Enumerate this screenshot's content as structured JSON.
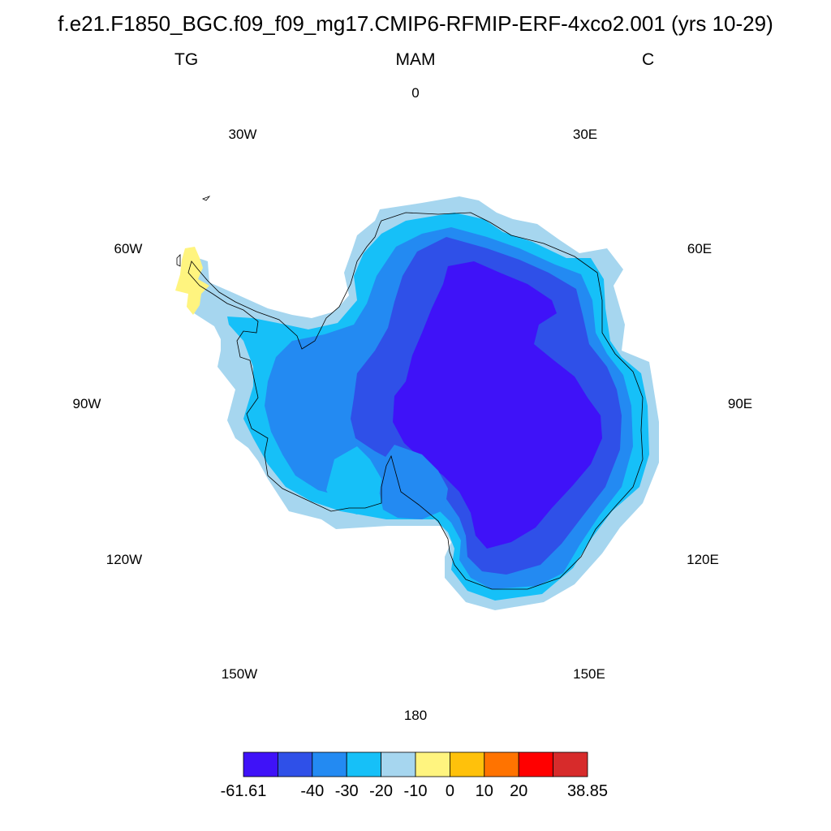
{
  "header": {
    "title": "f.e21.F1850_BGC.f09_f09_mg17.CMIP6-RFMIP-ERF-4xco2.001 (yrs 10-29)",
    "left": "TG",
    "center": "MAM",
    "right": "C"
  },
  "map": {
    "projection": "south-polar-stereographic",
    "region": "Antarctica",
    "longitude_labels": [
      {
        "key": "lon-0",
        "text": "0"
      },
      {
        "key": "lon-30e",
        "text": "30E"
      },
      {
        "key": "lon-60e",
        "text": "60E"
      },
      {
        "key": "lon-90e",
        "text": "90E"
      },
      {
        "key": "lon-120e",
        "text": "120E"
      },
      {
        "key": "lon-150e",
        "text": "150E"
      },
      {
        "key": "lon-180",
        "text": "180"
      },
      {
        "key": "lon-150w",
        "text": "150W"
      },
      {
        "key": "lon-120w",
        "text": "120W"
      },
      {
        "key": "lon-90w",
        "text": "90W"
      },
      {
        "key": "lon-60w",
        "text": "60W"
      },
      {
        "key": "lon-30w",
        "text": "30W"
      }
    ]
  },
  "colorbar": {
    "colors": [
      "#3f12f8",
      "#2f50e8",
      "#238af2",
      "#16c0f8",
      "#a6d6ef",
      "#fff47f",
      "#ffc10b",
      "#ff7300",
      "#ff0000",
      "#d72b2b"
    ],
    "labels": [
      "-61.61",
      "-40",
      "-30",
      "-20",
      "-10",
      "0",
      "10",
      "20",
      "38.85"
    ]
  }
}
